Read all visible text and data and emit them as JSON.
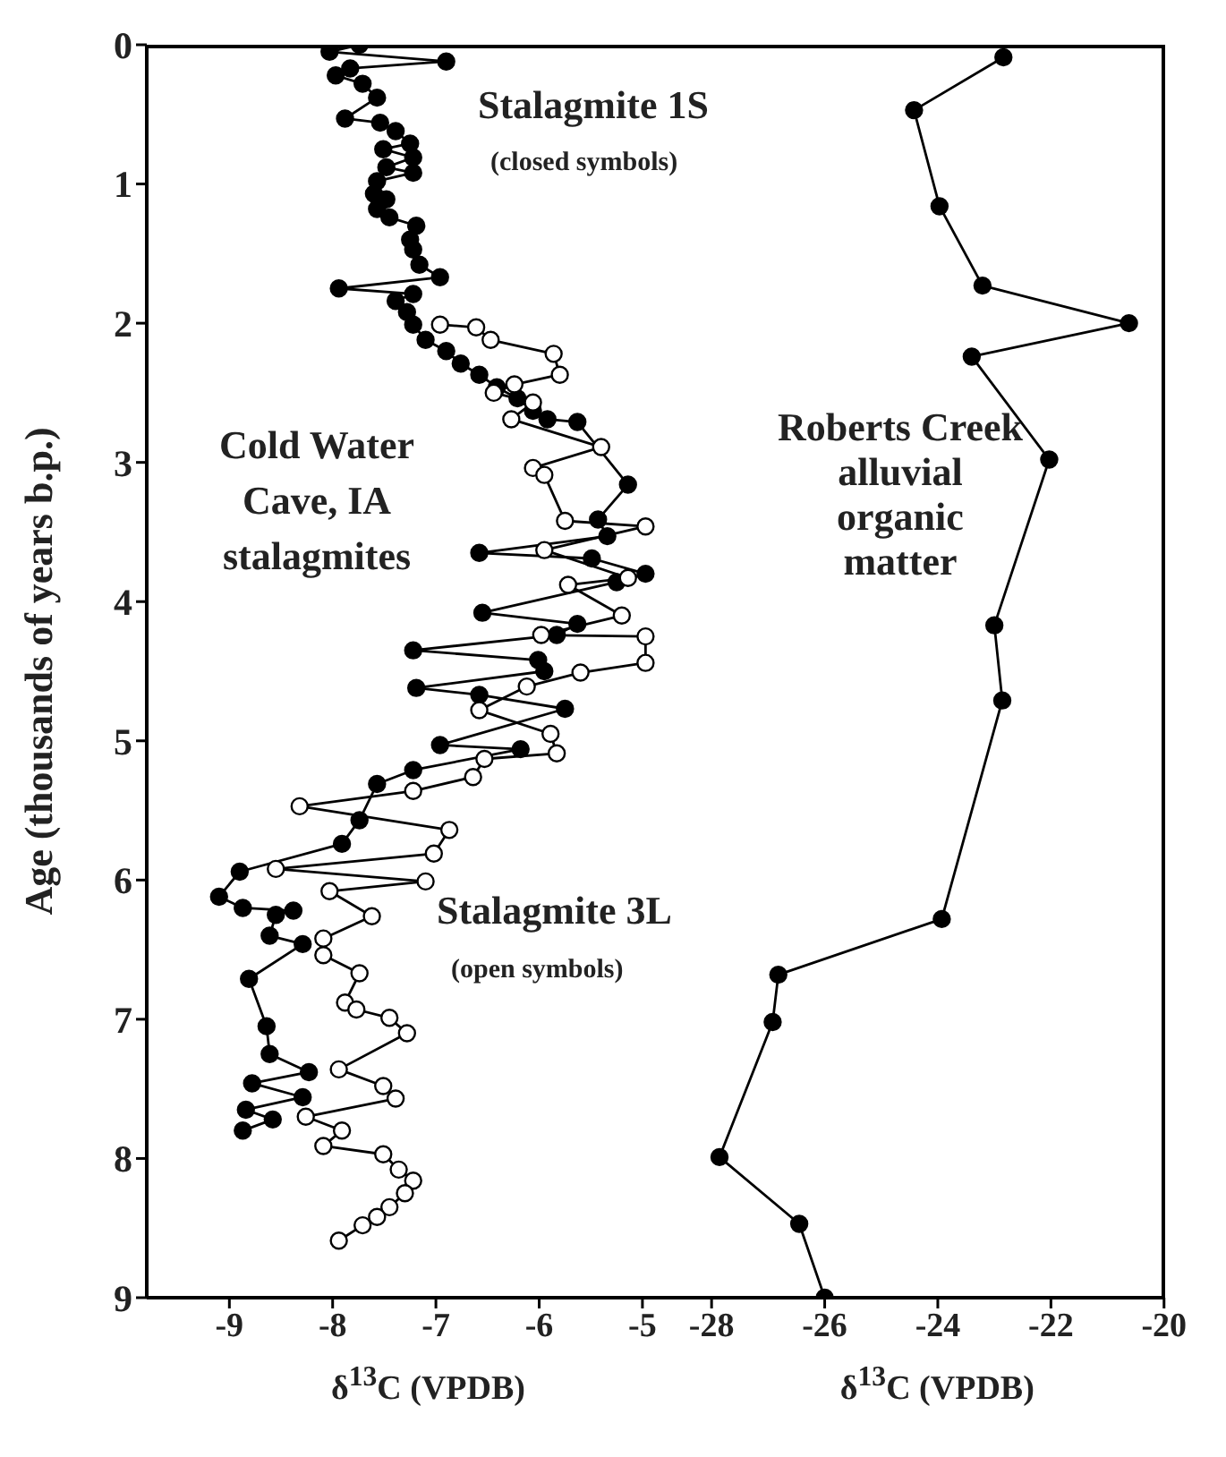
{
  "chart_data": [
    {
      "type": "line",
      "ylabel": "Age (thousands of years b.p.)",
      "xlabel": "δ$^{13}$C (VPDB)",
      "xlim": [
        -9.8,
        -4.35
      ],
      "xticks": [
        -9,
        -8,
        -7,
        -6,
        -5
      ],
      "ylim": [
        9,
        0
      ],
      "yticks": [
        0,
        1,
        2,
        3,
        4,
        5,
        6,
        7,
        8,
        9
      ],
      "marker": "circle",
      "line_style": "solid",
      "annotations": [
        "(closed symbols)",
        "Cold Water Cave, IA stalagmites",
        "(open symbols)"
      ],
      "series": [
        {
          "name": "Stalagmite 1S",
          "color": "#000000",
          "x": [
            -7.74,
            -8.03,
            -6.9,
            -7.83,
            -7.97,
            -7.71,
            -7.57,
            -7.88,
            -7.54,
            -7.39,
            -7.25,
            -7.51,
            -7.22,
            -7.48,
            -7.22,
            -7.57,
            -7.6,
            -7.48,
            -7.57,
            -7.45,
            -7.19,
            -7.25,
            -7.22,
            -7.16,
            -6.96,
            -7.94,
            -7.22,
            -7.39,
            -7.28,
            -7.22,
            -7.1,
            -6.9,
            -6.76,
            -6.58,
            -6.41,
            -6.21,
            -6.06,
            -5.92,
            -5.63,
            -5.14,
            -5.43,
            -5.34,
            -6.58,
            -5.49,
            -4.97,
            -5.25,
            -6.55,
            -5.63,
            -5.83,
            -7.22,
            -6.01,
            -5.95,
            -7.19,
            -6.58,
            -5.75,
            -6.96,
            -6.18,
            -7.22,
            -7.57,
            -7.74,
            -7.91,
            -8.9,
            -9.1,
            -8.87,
            -8.38,
            -8.55,
            -8.61,
            -8.29,
            -8.81,
            -8.64,
            -8.61,
            -8.23,
            -8.78,
            -8.29,
            -8.84,
            -8.58,
            -8.87
          ],
          "values": [
            0,
            0.05,
            0.12,
            0.17,
            0.22,
            0.28,
            0.38,
            0.53,
            0.56,
            0.62,
            0.71,
            0.75,
            0.81,
            0.88,
            0.92,
            0.98,
            1.07,
            1.11,
            1.18,
            1.24,
            1.3,
            1.4,
            1.47,
            1.58,
            1.67,
            1.75,
            1.79,
            1.84,
            1.92,
            2.01,
            2.12,
            2.2,
            2.29,
            2.37,
            2.46,
            2.54,
            2.63,
            2.69,
            2.71,
            3.16,
            3.41,
            3.53,
            3.65,
            3.69,
            3.8,
            3.86,
            4.08,
            4.16,
            4.24,
            4.35,
            4.42,
            4.5,
            4.62,
            4.67,
            4.77,
            5.03,
            5.06,
            5.21,
            5.31,
            5.57,
            5.74,
            5.94,
            6.12,
            6.2,
            6.22,
            6.25,
            6.4,
            6.46,
            6.71,
            7.05,
            7.25,
            7.38,
            7.46,
            7.56,
            7.65,
            7.72,
            7.8
          ]
        },
        {
          "name": "Stalagmite 3L",
          "color": "#ffffff",
          "x": [
            -6.96,
            -6.61,
            -6.47,
            -5.86,
            -5.8,
            -6.24,
            -6.44,
            -6.06,
            -6.27,
            -5.4,
            -6.06,
            -5.95,
            -5.75,
            -4.97,
            -5.95,
            -5.14,
            -5.72,
            -5.2,
            -5.98,
            -4.97,
            -4.97,
            -5.6,
            -6.12,
            -6.58,
            -5.89,
            -5.83,
            -6.53,
            -6.64,
            -7.22,
            -8.32,
            -6.87,
            -7.02,
            -8.55,
            -7.1,
            -8.03,
            -7.62,
            -8.09,
            -8.09,
            -7.74,
            -7.88,
            -7.77,
            -7.45,
            -7.28,
            -7.94,
            -7.51,
            -7.39,
            -8.26,
            -7.91,
            -8.09,
            -7.51,
            -7.36,
            -7.22,
            -7.3,
            -7.45,
            -7.57,
            -7.71,
            -7.94
          ],
          "values": [
            2.01,
            2.03,
            2.12,
            2.22,
            2.37,
            2.44,
            2.5,
            2.57,
            2.69,
            2.89,
            3.04,
            3.09,
            3.42,
            3.46,
            3.63,
            3.83,
            3.88,
            4.1,
            4.24,
            4.25,
            4.44,
            4.51,
            4.61,
            4.78,
            4.95,
            5.09,
            5.13,
            5.26,
            5.36,
            5.47,
            5.64,
            5.81,
            5.92,
            6.01,
            6.08,
            6.26,
            6.42,
            6.54,
            6.67,
            6.88,
            6.93,
            6.99,
            7.1,
            7.36,
            7.48,
            7.57,
            7.7,
            7.8,
            7.91,
            7.97,
            8.08,
            8.16,
            8.25,
            8.35,
            8.42,
            8.48,
            8.59
          ]
        }
      ]
    },
    {
      "type": "line",
      "xlabel": "δ$^{13}$C (VPDB)",
      "xlim": [
        -28.05,
        -20
      ],
      "xticks": [
        -28,
        -26,
        -24,
        -22,
        -20
      ],
      "ylim": [
        9,
        0
      ],
      "tick_labels": "x",
      "marker": "circle",
      "line_style": "solid",
      "series": [
        {
          "name": "Roberts Creek alluvial organic matter",
          "color": "#000000",
          "x": [
            -22.84,
            -24.42,
            -23.97,
            -23.21,
            -20.62,
            -23.4,
            -22.03,
            -23.0,
            -22.86,
            -23.93,
            -26.82,
            -26.92,
            -27.86,
            -26.45,
            -26.0
          ],
          "values": [
            0.09,
            0.47,
            1.16,
            1.73,
            2.0,
            2.24,
            2.98,
            4.17,
            4.71,
            6.28,
            6.68,
            7.02,
            7.99,
            8.47,
            9.0
          ]
        }
      ]
    }
  ]
}
